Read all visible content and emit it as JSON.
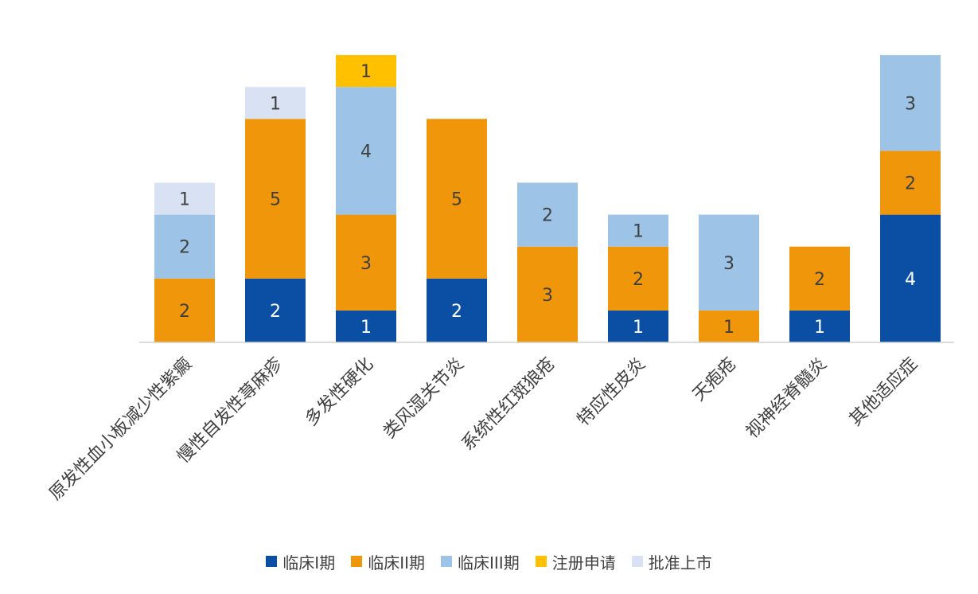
{
  "chart_data": {
    "type": "bar",
    "stacked": true,
    "title": "",
    "xlabel": "",
    "ylabel": "",
    "ylim": [
      0,
      9
    ],
    "grid": false,
    "legend_position": "bottom",
    "categories": [
      "原发性血小板减少性紫癜",
      "慢性自发性荨麻疹",
      "多发性硬化",
      "类风湿关节炎",
      "系统性红斑狼疮",
      "特应性皮炎",
      "天疱疮",
      "视神经脊髓炎",
      "其他适应症"
    ],
    "series": [
      {
        "name": "临床I期",
        "color": "#0a4fa3",
        "values": [
          0,
          2,
          1,
          2,
          0,
          1,
          0,
          1,
          4
        ]
      },
      {
        "name": "临床II期",
        "color": "#f0960a",
        "values": [
          2,
          5,
          3,
          5,
          3,
          2,
          1,
          2,
          2
        ]
      },
      {
        "name": "临床III期",
        "color": "#9dc3e6",
        "values": [
          2,
          0,
          4,
          0,
          2,
          1,
          3,
          0,
          3
        ]
      },
      {
        "name": "注册申请",
        "color": "#ffc000",
        "values": [
          0,
          0,
          1,
          0,
          0,
          0,
          0,
          0,
          0
        ]
      },
      {
        "name": "批准上市",
        "color": "#d9e2f3",
        "values": [
          1,
          1,
          0,
          0,
          0,
          0,
          0,
          0,
          0
        ]
      }
    ]
  }
}
